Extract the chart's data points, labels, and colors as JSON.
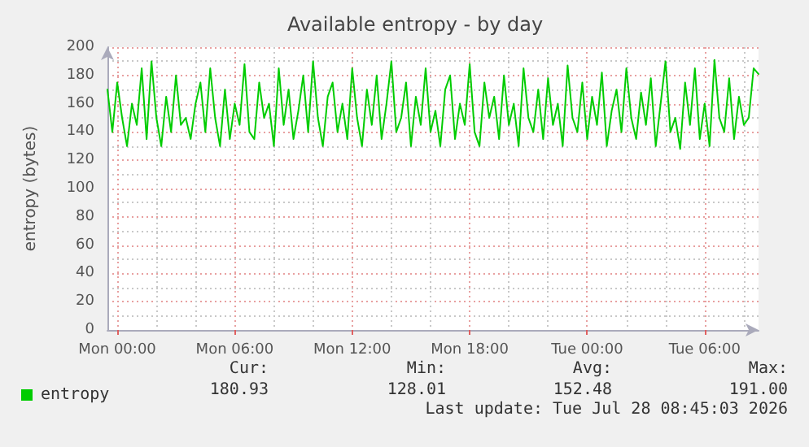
{
  "chart_data": {
    "type": "line",
    "title": "Available entropy - by day",
    "ylabel": "entropy (bytes)",
    "categories": [
      null,
      null,
      "Mon 00:00",
      null,
      null,
      null,
      null,
      null,
      null,
      null,
      null,
      null,
      null,
      null,
      null,
      null,
      null,
      null,
      null,
      null,
      null,
      null,
      null,
      null,
      null,
      null,
      "Mon 06:00",
      null,
      null,
      null,
      null,
      null,
      null,
      null,
      null,
      null,
      null,
      null,
      null,
      null,
      null,
      null,
      null,
      null,
      null,
      null,
      null,
      null,
      null,
      null,
      "Mon 12:00",
      null,
      null,
      null,
      null,
      null,
      null,
      null,
      null,
      null,
      null,
      null,
      null,
      null,
      null,
      null,
      null,
      null,
      null,
      null,
      null,
      null,
      null,
      null,
      "Mon 18:00",
      null,
      null,
      null,
      null,
      null,
      null,
      null,
      null,
      null,
      null,
      null,
      null,
      null,
      null,
      null,
      null,
      null,
      null,
      null,
      null,
      null,
      null,
      null,
      "Tue 00:00",
      null,
      null,
      null,
      null,
      null,
      null,
      null,
      null,
      null,
      null,
      null,
      null,
      null,
      null,
      null,
      null,
      null,
      null,
      null,
      null,
      null,
      null,
      null,
      "Tue 06:00",
      null,
      null,
      null,
      null,
      null,
      null,
      null,
      null,
      null,
      null,
      null
    ],
    "series": [
      {
        "name": "entropy",
        "color": "#00cc00",
        "values": [
          170,
          140,
          175,
          150,
          130,
          160,
          145,
          185,
          135,
          190,
          150,
          130,
          165,
          140,
          180,
          145,
          150,
          135,
          160,
          175,
          140,
          185,
          150,
          130,
          170,
          135,
          160,
          145,
          188,
          140,
          135,
          175,
          150,
          160,
          130,
          185,
          145,
          170,
          135,
          155,
          180,
          140,
          190,
          150,
          130,
          165,
          175,
          140,
          160,
          135,
          185,
          150,
          130,
          170,
          145,
          180,
          135,
          160,
          190,
          140,
          150,
          175,
          130,
          165,
          145,
          185,
          140,
          155,
          130,
          170,
          180,
          135,
          160,
          145,
          188,
          140,
          130,
          175,
          150,
          165,
          135,
          180,
          145,
          160,
          130,
          185,
          150,
          140,
          170,
          135,
          178,
          145,
          160,
          130,
          187,
          150,
          140,
          175,
          135,
          165,
          145,
          182,
          130,
          155,
          170,
          140,
          185,
          150,
          135,
          168,
          145,
          178,
          130,
          160,
          190,
          140,
          150,
          128,
          175,
          145,
          185,
          135,
          160,
          130,
          191,
          150,
          140,
          178,
          135,
          165,
          145,
          150,
          185,
          181
        ]
      }
    ],
    "ylim": [
      0,
      200
    ],
    "yticks": [
      0,
      20,
      40,
      60,
      80,
      100,
      120,
      140,
      160,
      180,
      200
    ],
    "grid": true,
    "legend": "bottom left",
    "marker": "none",
    "line_style": "solid",
    "annotations": [
      "Cur:",
      "Min:",
      "Avg:",
      "Max:",
      "180.93",
      "128.01",
      "152.48",
      "191.00",
      "Last update: Tue Jul 28 08:45:03 2026"
    ]
  }
}
